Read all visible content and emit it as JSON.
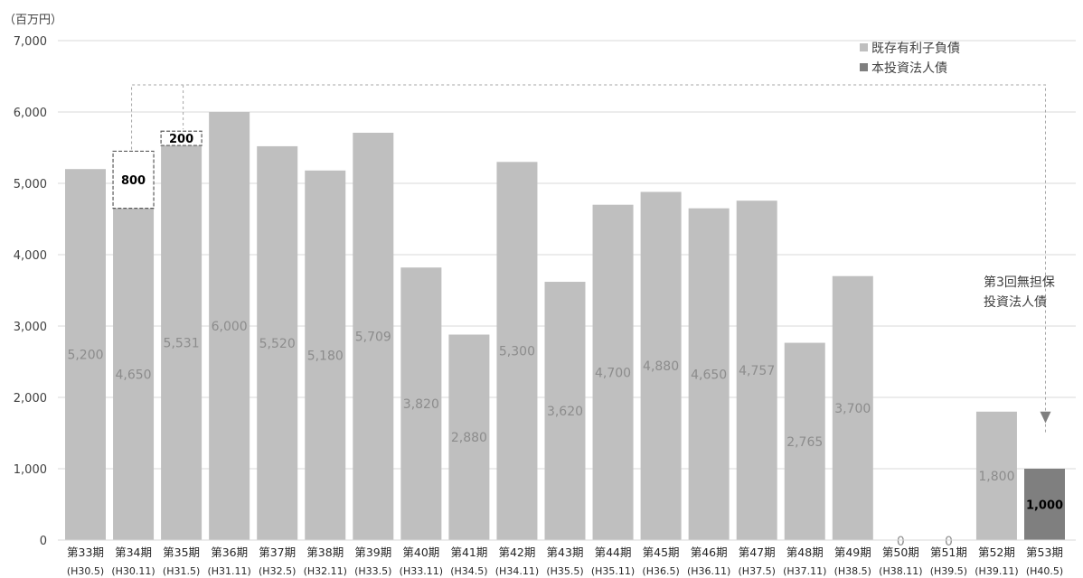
{
  "chart_data": {
    "type": "bar",
    "unit_label": "（百万円）",
    "ylim": [
      0,
      7000
    ],
    "yticks": [
      0,
      1000,
      2000,
      3000,
      4000,
      5000,
      6000,
      7000
    ],
    "ytick_labels": [
      "0",
      "1,000",
      "2,000",
      "3,000",
      "4,000",
      "5,000",
      "6,000",
      "7,000"
    ],
    "grid": true,
    "legend_position": "top-right",
    "categories": [
      {
        "period": "第33期",
        "date": "(H30.5)"
      },
      {
        "period": "第34期",
        "date": "(H30.11)"
      },
      {
        "period": "第35期",
        "date": "(H31.5)"
      },
      {
        "period": "第36期",
        "date": "(H31.11)"
      },
      {
        "period": "第37期",
        "date": "(H32.5)"
      },
      {
        "period": "第38期",
        "date": "(H32.11)"
      },
      {
        "period": "第39期",
        "date": "(H33.5)"
      },
      {
        "period": "第40期",
        "date": "(H33.11)"
      },
      {
        "period": "第41期",
        "date": "(H34.5)"
      },
      {
        "period": "第42期",
        "date": "(H34.11)"
      },
      {
        "period": "第43期",
        "date": "(H35.5)"
      },
      {
        "period": "第44期",
        "date": "(H35.11)"
      },
      {
        "period": "第45期",
        "date": "(H36.5)"
      },
      {
        "period": "第46期",
        "date": "(H36.11)"
      },
      {
        "period": "第47期",
        "date": "(H37.5)"
      },
      {
        "period": "第48期",
        "date": "(H37.11)"
      },
      {
        "period": "第49期",
        "date": "(H38.5)"
      },
      {
        "period": "第50期",
        "date": "(H38.11)"
      },
      {
        "period": "第51期",
        "date": "(H39.5)"
      },
      {
        "period": "第52期",
        "date": "(H39.11)"
      },
      {
        "period": "第53期",
        "date": "(H40.5)"
      }
    ],
    "series": [
      {
        "name": "既存有利子負債",
        "color": "#bfbfbf",
        "values": [
          5200,
          4650,
          5531,
          6000,
          5520,
          5180,
          5709,
          3820,
          2880,
          5300,
          3620,
          4700,
          4880,
          4650,
          4757,
          2765,
          3700,
          0,
          0,
          1800,
          null
        ],
        "labels": [
          "5,200",
          "4,650",
          "5,531",
          "6,000",
          "5,520",
          "5,180",
          "5,709",
          "3,820",
          "2,880",
          "5,300",
          "3,620",
          "4,700",
          "4,880",
          "4,650",
          "4,757",
          "2,765",
          "3,700",
          "0",
          "0",
          "1,800",
          ""
        ]
      },
      {
        "name": "本投資法人債",
        "color": "#7f7f7f",
        "values": [
          null,
          null,
          null,
          null,
          null,
          null,
          null,
          null,
          null,
          null,
          null,
          null,
          null,
          null,
          null,
          null,
          null,
          null,
          null,
          null,
          1000
        ],
        "labels": [
          "",
          "",
          "",
          "",
          "",
          "",
          "",
          "",
          "",
          "",
          "",
          "",
          "",
          "",
          "",
          "",
          "",
          "",
          "",
          "",
          "1,000"
        ]
      }
    ],
    "dashed_boxes": [
      {
        "category_index": 1,
        "value": 800,
        "label": "800"
      },
      {
        "category_index": 2,
        "value": 200,
        "label": "200"
      }
    ],
    "annotation": {
      "lines": [
        "第3回無担保",
        "投資法人債"
      ]
    }
  }
}
